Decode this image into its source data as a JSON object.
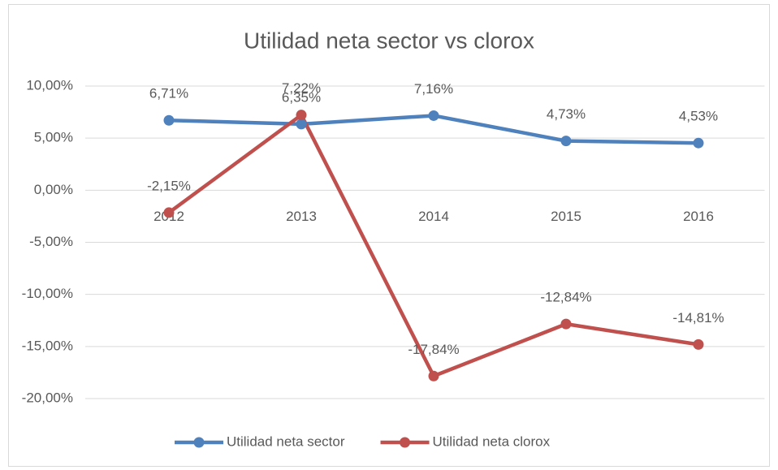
{
  "chart_data": {
    "type": "line",
    "title": "Utilidad neta sector vs clorox",
    "categories": [
      "2012",
      "2013",
      "2014",
      "2015",
      "2016"
    ],
    "series": [
      {
        "name": "Utilidad neta sector",
        "color": "#4f81bd",
        "values": [
          6.71,
          6.35,
          7.16,
          4.73,
          4.53
        ],
        "value_labels": [
          "6,71%",
          "6,35%",
          "7,16%",
          "4,73%",
          "4,53%"
        ]
      },
      {
        "name": "Utilidad neta clorox",
        "color": "#c0504d",
        "values": [
          -2.15,
          7.22,
          -17.84,
          -12.84,
          -14.81
        ],
        "value_labels": [
          "-2,15%",
          "7,22%",
          "-17,84%",
          "-12,84%",
          "-14,81%"
        ]
      }
    ],
    "ylim": [
      -20,
      10
    ],
    "yticks": [
      {
        "value": -20,
        "label": "-20,00%"
      },
      {
        "value": -15,
        "label": "-15,00%"
      },
      {
        "value": -10,
        "label": "-10,00%"
      },
      {
        "value": -5,
        "label": "-5,00%"
      },
      {
        "value": 0,
        "label": "0,00%"
      },
      {
        "value": 5,
        "label": "5,00%"
      },
      {
        "value": 10,
        "label": "10,00%"
      }
    ],
    "grid": true,
    "legend": "bottom"
  }
}
